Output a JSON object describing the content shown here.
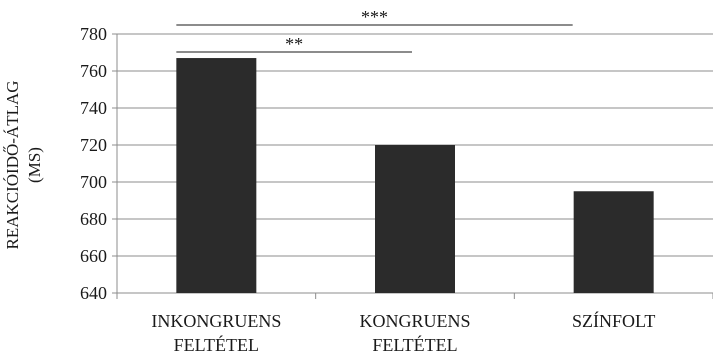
{
  "chart_data": {
    "type": "bar",
    "title": "",
    "xlabel": "",
    "ylabel": [
      "REAKCIÓIDŐ-ÁTLAG",
      "(MS)"
    ],
    "ylim": [
      640,
      780
    ],
    "yticks": [
      640,
      660,
      680,
      700,
      720,
      740,
      760,
      780
    ],
    "grid": true,
    "categories": [
      [
        "INKONGRUENS",
        "FELTÉTEL"
      ],
      [
        "KONGRUENS",
        "FELTÉTEL"
      ],
      [
        "SZÍNFOLT"
      ]
    ],
    "values": [
      767,
      720,
      695
    ],
    "bar_color": "#2b2b2b",
    "significance": [
      {
        "from": 0,
        "to": 1,
        "label": "**"
      },
      {
        "from": 0,
        "to": 2,
        "label": "***"
      }
    ]
  }
}
